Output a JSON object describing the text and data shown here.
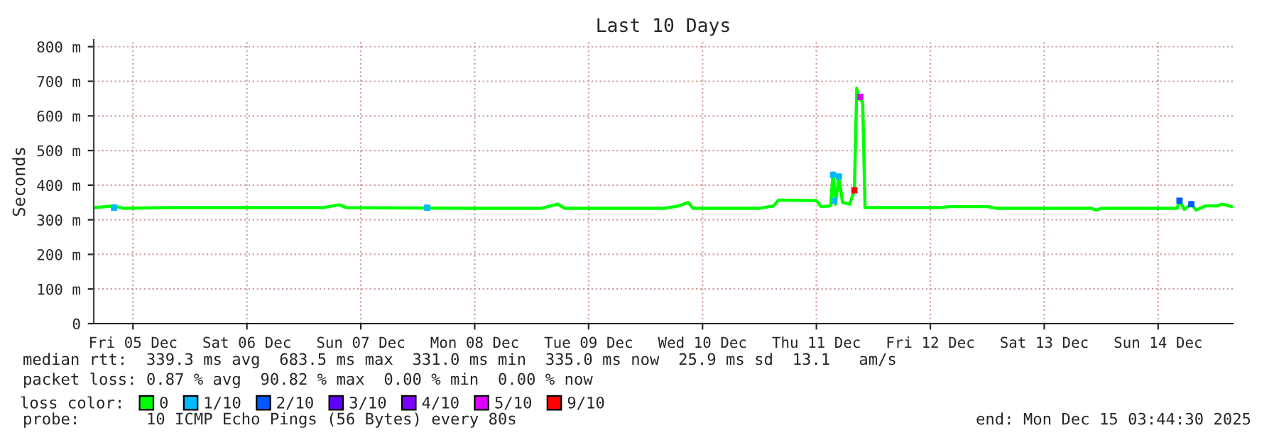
{
  "chart_data": {
    "type": "line",
    "title": "Last 10 Days",
    "ylabel": "Seconds",
    "legend_title": "loss color:",
    "legend": "bottom",
    "grid": true,
    "xlim": [
      "2025-12-05T03:44",
      "2025-12-15T03:44"
    ],
    "xticks": [
      {
        "value": "2025-12-05T12:00",
        "label": "Fri 05 Dec"
      },
      {
        "value": "2025-12-06T12:00",
        "label": "Sat 06 Dec"
      },
      {
        "value": "2025-12-07T12:00",
        "label": "Sun 07 Dec"
      },
      {
        "value": "2025-12-08T12:00",
        "label": "Mon 08 Dec"
      },
      {
        "value": "2025-12-09T12:00",
        "label": "Tue 09 Dec"
      },
      {
        "value": "2025-12-10T12:00",
        "label": "Wed 10 Dec"
      },
      {
        "value": "2025-12-11T12:00",
        "label": "Thu 11 Dec"
      },
      {
        "value": "2025-12-12T12:00",
        "label": "Fri 12 Dec"
      },
      {
        "value": "2025-12-13T12:00",
        "label": "Sat 13 Dec"
      },
      {
        "value": "2025-12-14T12:00",
        "label": "Sun 14 Dec"
      }
    ],
    "ylim": [
      0,
      820
    ],
    "yticks": [
      0,
      {
        "value": 100,
        "label": "100 m"
      },
      {
        "value": 200,
        "label": "200 m"
      },
      {
        "value": 300,
        "label": "300 m"
      },
      {
        "value": 400,
        "label": "400 m"
      },
      {
        "value": 500,
        "label": "500 m"
      },
      {
        "value": 600,
        "label": "600 m"
      },
      {
        "value": 700,
        "label": "700 m"
      },
      {
        "value": 800,
        "label": "800 m"
      }
    ],
    "series": [
      {
        "name": "0",
        "color": "#00ff00",
        "marker": "none",
        "line_style": "solid",
        "x": [
          "2025-12-05T04:00",
          "2025-12-05T08:00",
          "2025-12-05T10:00",
          "2025-12-05T20:00",
          "2025-12-06T12:00",
          "2025-12-07T04:00",
          "2025-12-07T07:30",
          "2025-12-07T09:00",
          "2025-12-08T12:00",
          "2025-12-09T02:00",
          "2025-12-09T05:30",
          "2025-12-09T07:00",
          "2025-12-10T04:00",
          "2025-12-10T07:00",
          "2025-12-10T09:00",
          "2025-12-10T10:00",
          "2025-12-11T00:00",
          "2025-12-11T03:00",
          "2025-12-11T04:00",
          "2025-12-11T12:00",
          "2025-12-11T13:00",
          "2025-12-11T15:00",
          "2025-12-11T15:30",
          "2025-12-11T16:00",
          "2025-12-11T16:45",
          "2025-12-11T17:30",
          "2025-12-11T19:00",
          "2025-12-11T20:00",
          "2025-12-11T20:30",
          "2025-12-11T21:00",
          "2025-12-11T21:45",
          "2025-12-11T22:15",
          "2025-12-12T14:00",
          "2025-12-12T16:00",
          "2025-12-13T00:00",
          "2025-12-13T02:00",
          "2025-12-13T22:00",
          "2025-12-13T23:00",
          "2025-12-14T00:00",
          "2025-12-14T16:00",
          "2025-12-14T16:30",
          "2025-12-14T17:30",
          "2025-12-14T19:00",
          "2025-12-14T20:00",
          "2025-12-14T22:00",
          "2025-12-15T00:30",
          "2025-12-15T01:30",
          "2025-12-15T03:30"
        ],
        "values": [
          335,
          340,
          333,
          335,
          335,
          335,
          343,
          335,
          333,
          333,
          345,
          333,
          333,
          340,
          350,
          333,
          333,
          340,
          357,
          355,
          338,
          340,
          435,
          345,
          425,
          350,
          345,
          385,
          680,
          650,
          640,
          335,
          335,
          338,
          338,
          333,
          333,
          328,
          333,
          333,
          355,
          330,
          345,
          328,
          340,
          340,
          345,
          338
        ]
      },
      {
        "name": "1/10",
        "type": "scatter",
        "color": "#00b8ff",
        "marker": "square",
        "x": [
          "2025-12-05T08:00",
          "2025-12-08T02:00",
          "2025-12-11T15:30",
          "2025-12-11T16:45",
          "2025-12-11T15:45"
        ],
        "values": [
          335,
          335,
          430,
          425,
          355
        ]
      },
      {
        "name": "2/10",
        "type": "scatter",
        "color": "#0059ff",
        "marker": "square",
        "x": [
          "2025-12-14T16:30",
          "2025-12-14T19:00"
        ],
        "values": [
          355,
          345
        ]
      },
      {
        "name": "3/10",
        "type": "scatter",
        "color": "#5e00ff",
        "marker": "square"
      },
      {
        "name": "4/10",
        "type": "scatter",
        "color": "#7e00ff",
        "marker": "square"
      },
      {
        "name": "5/10",
        "type": "scatter",
        "color": "#dd00ff",
        "marker": "square",
        "x": [
          "2025-12-11T21:15"
        ],
        "values": [
          655
        ]
      },
      {
        "name": "9/10",
        "type": "scatter",
        "color": "#ff0000",
        "marker": "square",
        "x": [
          "2025-12-11T20:00"
        ],
        "values": [
          385
        ]
      }
    ],
    "annotations": [
      "median rtt:  339.3 ms avg  683.5 ms max  331.0 ms min  335.0 ms now  25.9 ms sd  13.1   am/s",
      "packet loss: 0.87 % avg  90.82 % max  0.00 % min  0.00 % now",
      "probe:       10 ICMP Echo Pings (56 Bytes) every 80s",
      "end: Mon Dec 15 03:44:30 2025"
    ]
  }
}
